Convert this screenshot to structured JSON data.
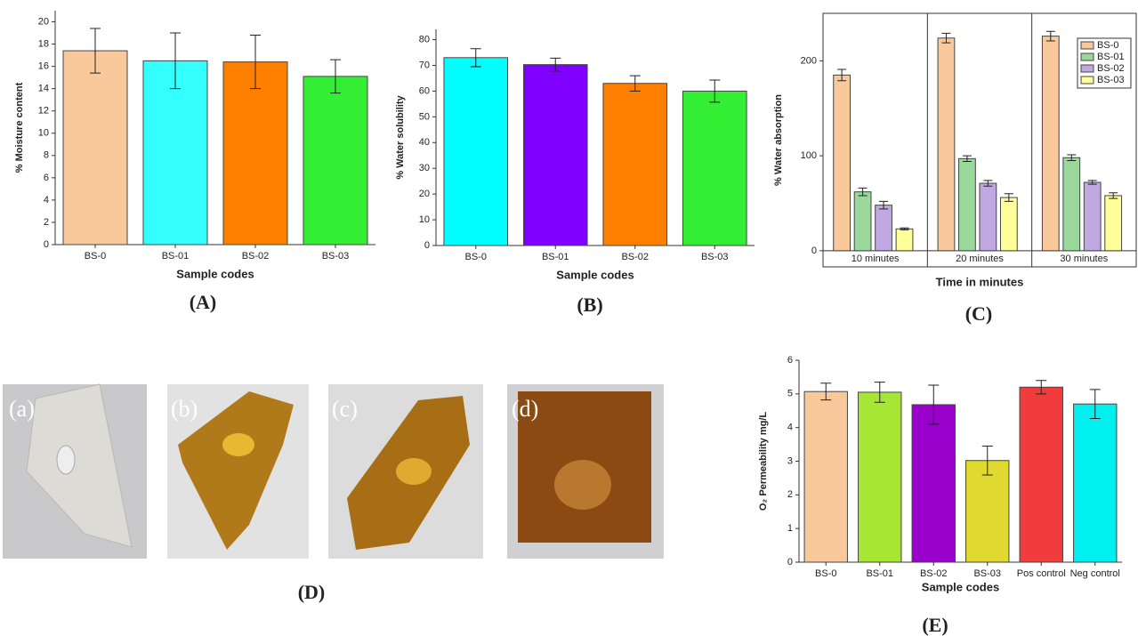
{
  "chart_data": [
    {
      "type": "bar",
      "caption": "(A)",
      "x_label": "Sample codes",
      "y_label": "% Moisture content",
      "categories": [
        "BS-0",
        "BS-01",
        "BS-02",
        "BS-03"
      ],
      "values": [
        17.4,
        16.5,
        16.4,
        15.1
      ],
      "errors": [
        2.0,
        2.5,
        2.4,
        1.5
      ],
      "colors": [
        "#f9c89b",
        "#33ffff",
        "#ff7f00",
        "#33ee33"
      ],
      "ylim": [
        0,
        21
      ],
      "yticks": [
        0,
        2,
        4,
        6,
        8,
        10,
        12,
        14,
        16,
        18,
        20
      ]
    },
    {
      "type": "bar",
      "caption": "(B)",
      "x_label": "Sample codes",
      "y_label": "% Water solubility",
      "categories": [
        "BS-0",
        "BS-01",
        "BS-02",
        "BS-03"
      ],
      "values": [
        73,
        70.3,
        63,
        60
      ],
      "errors": [
        3.5,
        2.5,
        3,
        4.3
      ],
      "colors": [
        "#00ffff",
        "#8000ff",
        "#ff7f00",
        "#33ee33"
      ],
      "ylim": [
        0,
        84
      ],
      "yticks": [
        0,
        10,
        20,
        30,
        40,
        50,
        60,
        70,
        80
      ]
    },
    {
      "type": "grouped_bar",
      "caption": "(C)",
      "x_label": "Time in minutes",
      "y_label": "% Water absorption",
      "categories": [
        "10 minutes",
        "20 minutes",
        "30 minutes"
      ],
      "series": [
        {
          "name": "BS-0",
          "color": "#f9c89b",
          "values": [
            185,
            224,
            226
          ],
          "errors": [
            6,
            5,
            5
          ]
        },
        {
          "name": "BS-01",
          "color": "#9bd89b",
          "values": [
            62,
            97,
            98
          ],
          "errors": [
            4,
            3,
            3
          ]
        },
        {
          "name": "BS-02",
          "color": "#c0a8e0",
          "values": [
            48,
            71,
            72
          ],
          "errors": [
            4,
            3,
            2
          ]
        },
        {
          "name": "BS-03",
          "color": "#ffff99",
          "values": [
            23,
            56,
            58
          ],
          "errors": [
            1,
            4,
            3
          ]
        }
      ],
      "legend": "upper right",
      "ylim": [
        -17,
        250
      ],
      "yticks": [
        0,
        100,
        200
      ]
    },
    {
      "type": "bar",
      "caption": "(E)",
      "x_label": "Sample codes",
      "y_label": "O₂ Permeability mg/L",
      "categories": [
        "BS-0",
        "BS-01",
        "BS-02",
        "BS-03",
        "Pos control",
        "Neg control"
      ],
      "values": [
        5.07,
        5.05,
        4.68,
        3.02,
        5.2,
        4.7
      ],
      "errors": [
        0.25,
        0.3,
        0.58,
        0.43,
        0.2,
        0.43
      ],
      "colors": [
        "#f9c89b",
        "#a6e635",
        "#9900cc",
        "#e0d930",
        "#f03c3c",
        "#00f0f0"
      ],
      "ylim": [
        0,
        6
      ],
      "yticks": [
        0,
        1,
        2,
        3,
        4,
        5,
        6
      ]
    }
  ],
  "photos": {
    "labels": [
      "(a)",
      "(b)",
      "(c)",
      "(d)"
    ],
    "caption": "(D)"
  }
}
